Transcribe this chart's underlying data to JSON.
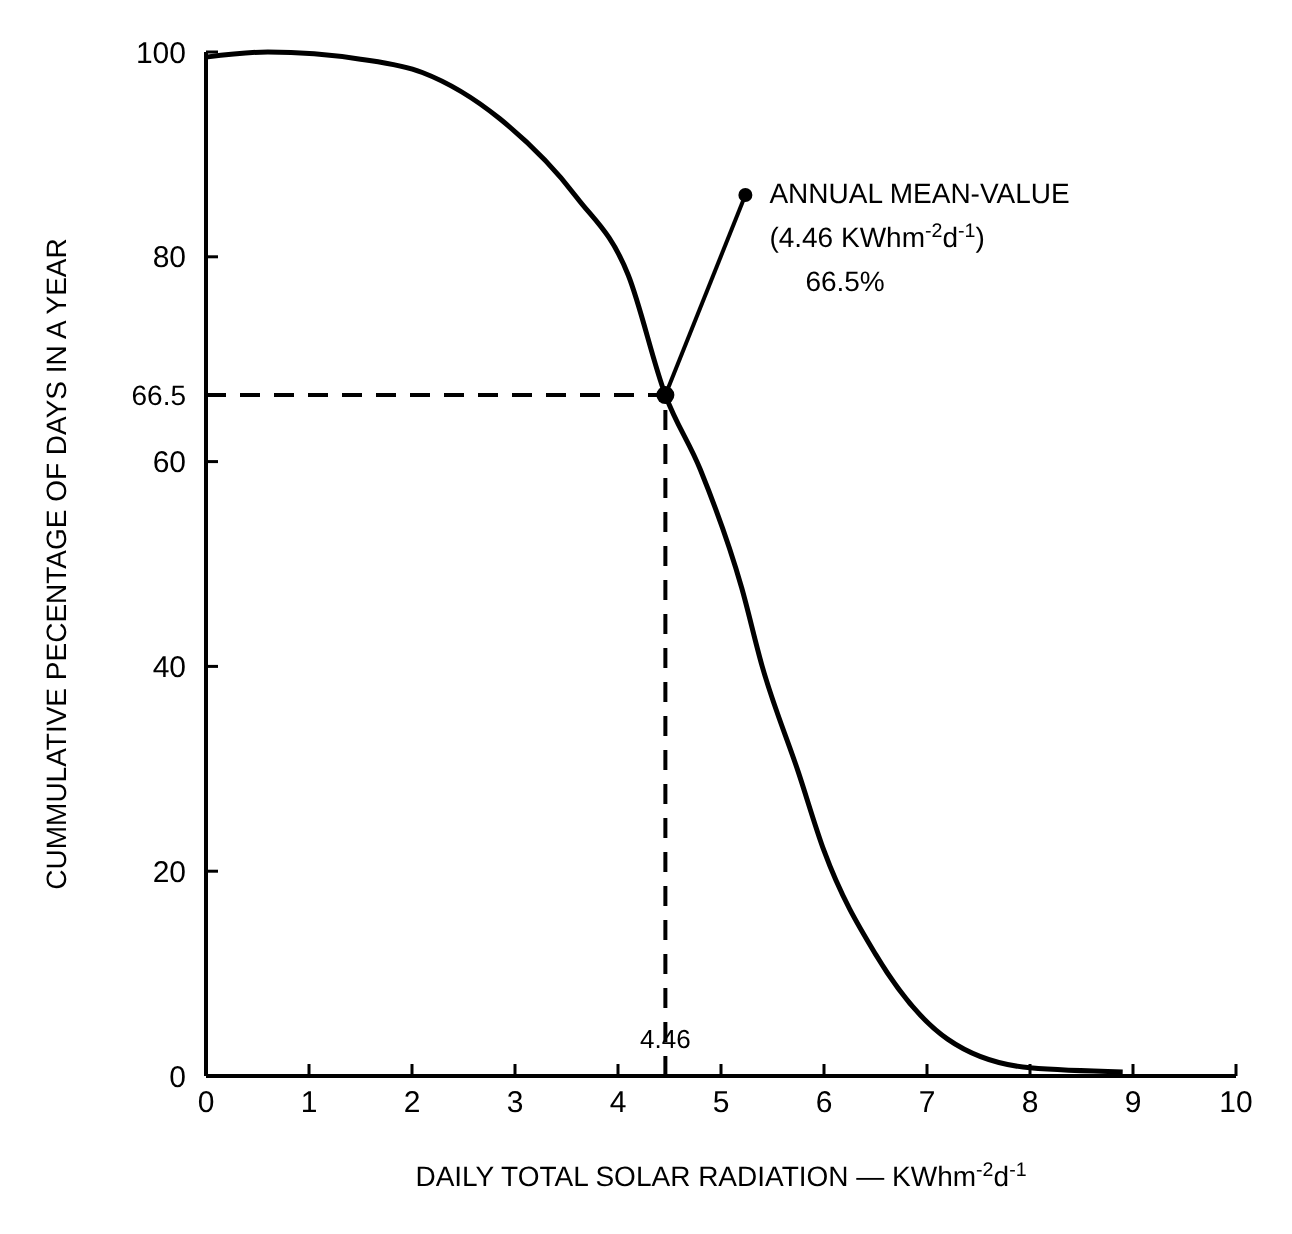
{
  "chart_data": {
    "type": "line",
    "xlabel": "DAILY TOTAL SOLAR RADIATION — KWhm$^{-2}$d$^{-1}$",
    "ylabel": "CUMMULATIVE PECENTAGE OF DAYS IN A YEAR",
    "x": [
      0,
      0.6,
      1.5,
      2.1,
      2.85,
      3.6,
      4.1,
      4.46,
      4.8,
      5.2,
      5.4,
      5.75,
      6.0,
      6.5,
      7.2,
      8.0,
      8.9
    ],
    "series": [
      {
        "color": "#000000",
        "values": [
          99.5,
          100,
          99.3,
          98,
          93.5,
          85.8,
          78.2,
          66.5,
          59.2,
          47.7,
          40,
          29.7,
          22,
          11.9,
          3.6,
          0.8,
          0.4
        ]
      }
    ],
    "xlim": [
      0,
      10
    ],
    "xticks": [
      0,
      1,
      2,
      3,
      4,
      5,
      6,
      7,
      8,
      9,
      10
    ],
    "ylim": [
      0,
      100
    ],
    "yticks": [
      0,
      20,
      40,
      60,
      80,
      100
    ],
    "ref_lines": [
      {
        "axis": "y",
        "value": 66.5,
        "label": "66.5",
        "line_style": "dashed"
      },
      {
        "axis": "x",
        "value": 4.46,
        "label": "4.46",
        "line_style": "dashed"
      }
    ],
    "annotations": [
      {
        "text": "ANNUAL MEAN-VALUE",
        "x": 4.46,
        "y": 66.5
      },
      "(4.46 KWhm$^{-2}$d$^{-1}$)",
      "66.5%"
    ],
    "grid": false,
    "marker": "none",
    "line_style": "solid"
  }
}
